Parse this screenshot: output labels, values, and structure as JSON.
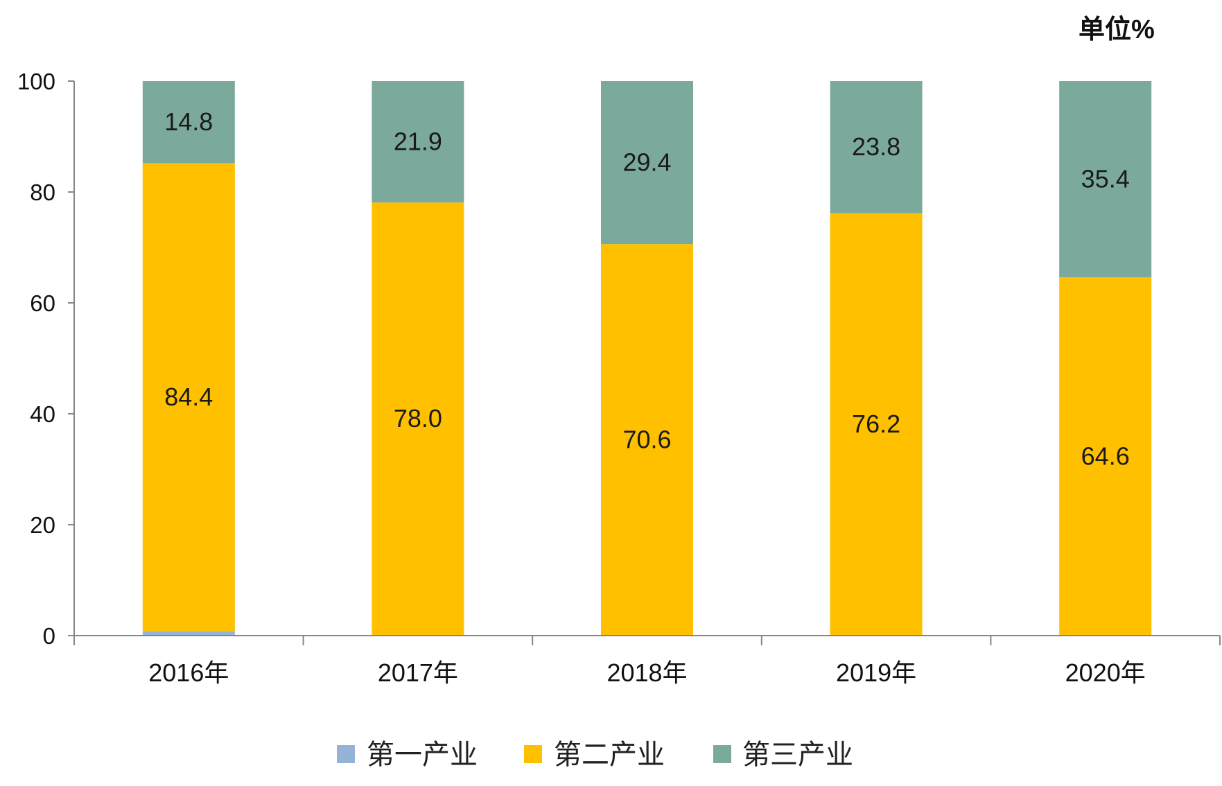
{
  "chart_data": {
    "type": "bar",
    "stacked": true,
    "unit_label": "单位%",
    "categories": [
      "2016年",
      "2017年",
      "2018年",
      "2019年",
      "2020年"
    ],
    "series": [
      {
        "name": "第一产业",
        "values": [
          0.8,
          0.1,
          0,
          0,
          0
        ],
        "color": "#95b3d7",
        "data_labels": false
      },
      {
        "name": "第二产业",
        "values": [
          84.4,
          78.0,
          70.6,
          76.2,
          64.6
        ],
        "color": "#ffc000",
        "data_labels": true
      },
      {
        "name": "第三产业",
        "values": [
          14.8,
          21.9,
          29.4,
          23.8,
          35.4
        ],
        "color": "#7ba99b",
        "data_labels": true
      }
    ],
    "ylim": [
      0,
      100
    ],
    "yticks": [
      0,
      20,
      40,
      60,
      80,
      100
    ],
    "grid": false,
    "legend": "bottom"
  }
}
